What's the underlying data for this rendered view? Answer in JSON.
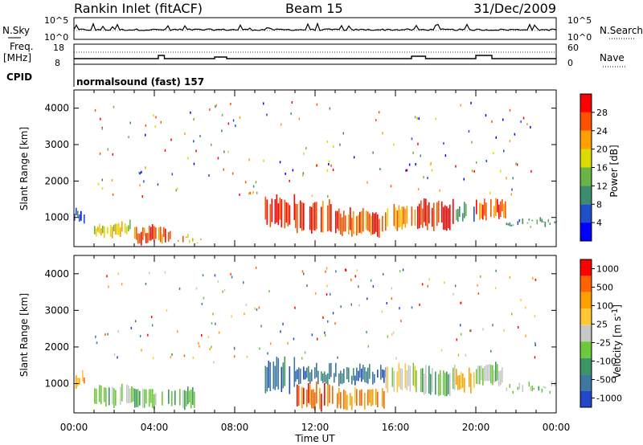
{
  "header": {
    "station": "Rankin Inlet (fitACF)",
    "beam": "Beam 15",
    "date": "31/Dec/2009"
  },
  "noise_panel": {
    "left_label": "N.Sky",
    "right_label": "N.Search",
    "left_ticks": [
      "10^5",
      "10^0"
    ],
    "right_ticks": [
      "10^5",
      "10^0"
    ]
  },
  "freq_panel": {
    "left_label_1": "Freq.",
    "left_label_2": "[MHz]",
    "right_label": "Nave",
    "left_ticks": [
      "18",
      "8"
    ],
    "right_ticks": [
      "60",
      "0"
    ]
  },
  "cpid_panel": {
    "label": "CPID",
    "program": "normalsound (fast) 157"
  },
  "time_axis": {
    "label": "Time UT",
    "ticks": [
      "00:00",
      "04:00",
      "08:00",
      "12:00",
      "16:00",
      "20:00",
      "00:00"
    ]
  },
  "chart_data": [
    {
      "type": "heatmap",
      "name": "power-panel",
      "ylabel": "Slant Range [km]",
      "yticks": [
        "1000",
        "2000",
        "3000",
        "4000"
      ],
      "ylim": [
        200,
        4500
      ],
      "xlim_hours": [
        0,
        24
      ],
      "colorbar_label": "Power [dB]",
      "colorbar_ticks": [
        "4",
        "8",
        "12",
        "16",
        "20",
        "24",
        "28"
      ],
      "colorbar_colors": [
        "#0000ff",
        "#2050c8",
        "#3c8c6e",
        "#69b446",
        "#dcdc00",
        "#ffa000",
        "#ff5000",
        "#ff0000"
      ],
      "regions": [
        {
          "t0": 0.0,
          "t1": 0.5,
          "r0": 900,
          "r1": 1300,
          "level": 1
        },
        {
          "t0": 1.0,
          "t1": 3.0,
          "r0": 500,
          "r1": 900,
          "level": 4
        },
        {
          "t0": 3.0,
          "t1": 5.0,
          "r0": 300,
          "r1": 800,
          "level": 6
        },
        {
          "t0": 5.0,
          "t1": 6.5,
          "r0": 300,
          "r1": 500,
          "level": 5
        },
        {
          "t0": 9.5,
          "t1": 11.0,
          "r0": 800,
          "r1": 1600,
          "level": 7
        },
        {
          "t0": 11.0,
          "t1": 13.0,
          "r0": 600,
          "r1": 1500,
          "level": 6
        },
        {
          "t0": 13.0,
          "t1": 15.5,
          "r0": 500,
          "r1": 1200,
          "level": 6
        },
        {
          "t0": 15.5,
          "t1": 17.0,
          "r0": 700,
          "r1": 1400,
          "level": 5
        },
        {
          "t0": 17.0,
          "t1": 19.0,
          "r0": 700,
          "r1": 1500,
          "level": 7
        },
        {
          "t0": 19.0,
          "t1": 20.0,
          "r0": 900,
          "r1": 1400,
          "level": 2
        },
        {
          "t0": 20.0,
          "t1": 21.5,
          "r0": 1000,
          "r1": 1600,
          "level": 6
        },
        {
          "t0": 21.5,
          "t1": 24.0,
          "r0": 800,
          "r1": 1000,
          "level": 2
        }
      ]
    },
    {
      "type": "heatmap",
      "name": "velocity-panel",
      "ylabel": "Slant Range [km]",
      "yticks": [
        "1000",
        "2000",
        "3000",
        "4000"
      ],
      "ylim": [
        200,
        4500
      ],
      "xlim_hours": [
        0,
        24
      ],
      "colorbar_label": "Velocity [m s",
      "colorbar_label_sup": "-1",
      "colorbar_label_end": "]",
      "colorbar_ticks": [
        "1000",
        "500",
        "100",
        "25",
        "-25",
        "-100",
        "-500",
        "-1000"
      ],
      "colorbar_colors": [
        "#2048c8",
        "#3c78a0",
        "#3c9664",
        "#6ec83c",
        "#c8c8c8",
        "#ffc832",
        "#ffa000",
        "#ff6400",
        "#ff0000"
      ],
      "regions": [
        {
          "t0": 0.0,
          "t1": 0.5,
          "r0": 900,
          "r1": 1300,
          "level": 6
        },
        {
          "t0": 1.0,
          "t1": 3.0,
          "r0": 400,
          "r1": 1000,
          "level": 3
        },
        {
          "t0": 3.0,
          "t1": 6.0,
          "r0": 300,
          "r1": 900,
          "level": 3
        },
        {
          "t0": 9.5,
          "t1": 11.0,
          "r0": 800,
          "r1": 1700,
          "level": 1
        },
        {
          "t0": 11.0,
          "t1": 13.0,
          "r0": 300,
          "r1": 1000,
          "level": 7
        },
        {
          "t0": 13.0,
          "t1": 15.5,
          "r0": 300,
          "r1": 900,
          "level": 6
        },
        {
          "t0": 11.0,
          "t1": 15.5,
          "r0": 1000,
          "r1": 1500,
          "level": 1
        },
        {
          "t0": 15.5,
          "t1": 17.0,
          "r0": 800,
          "r1": 1600,
          "level": 4
        },
        {
          "t0": 17.0,
          "t1": 19.0,
          "r0": 700,
          "r1": 1500,
          "level": 3
        },
        {
          "t0": 19.0,
          "t1": 20.0,
          "r0": 800,
          "r1": 1400,
          "level": 6
        },
        {
          "t0": 20.0,
          "t1": 21.5,
          "r0": 1000,
          "r1": 1600,
          "level": 3
        },
        {
          "t0": 21.5,
          "t1": 24.0,
          "r0": 800,
          "r1": 1000,
          "level": 3
        }
      ]
    }
  ]
}
